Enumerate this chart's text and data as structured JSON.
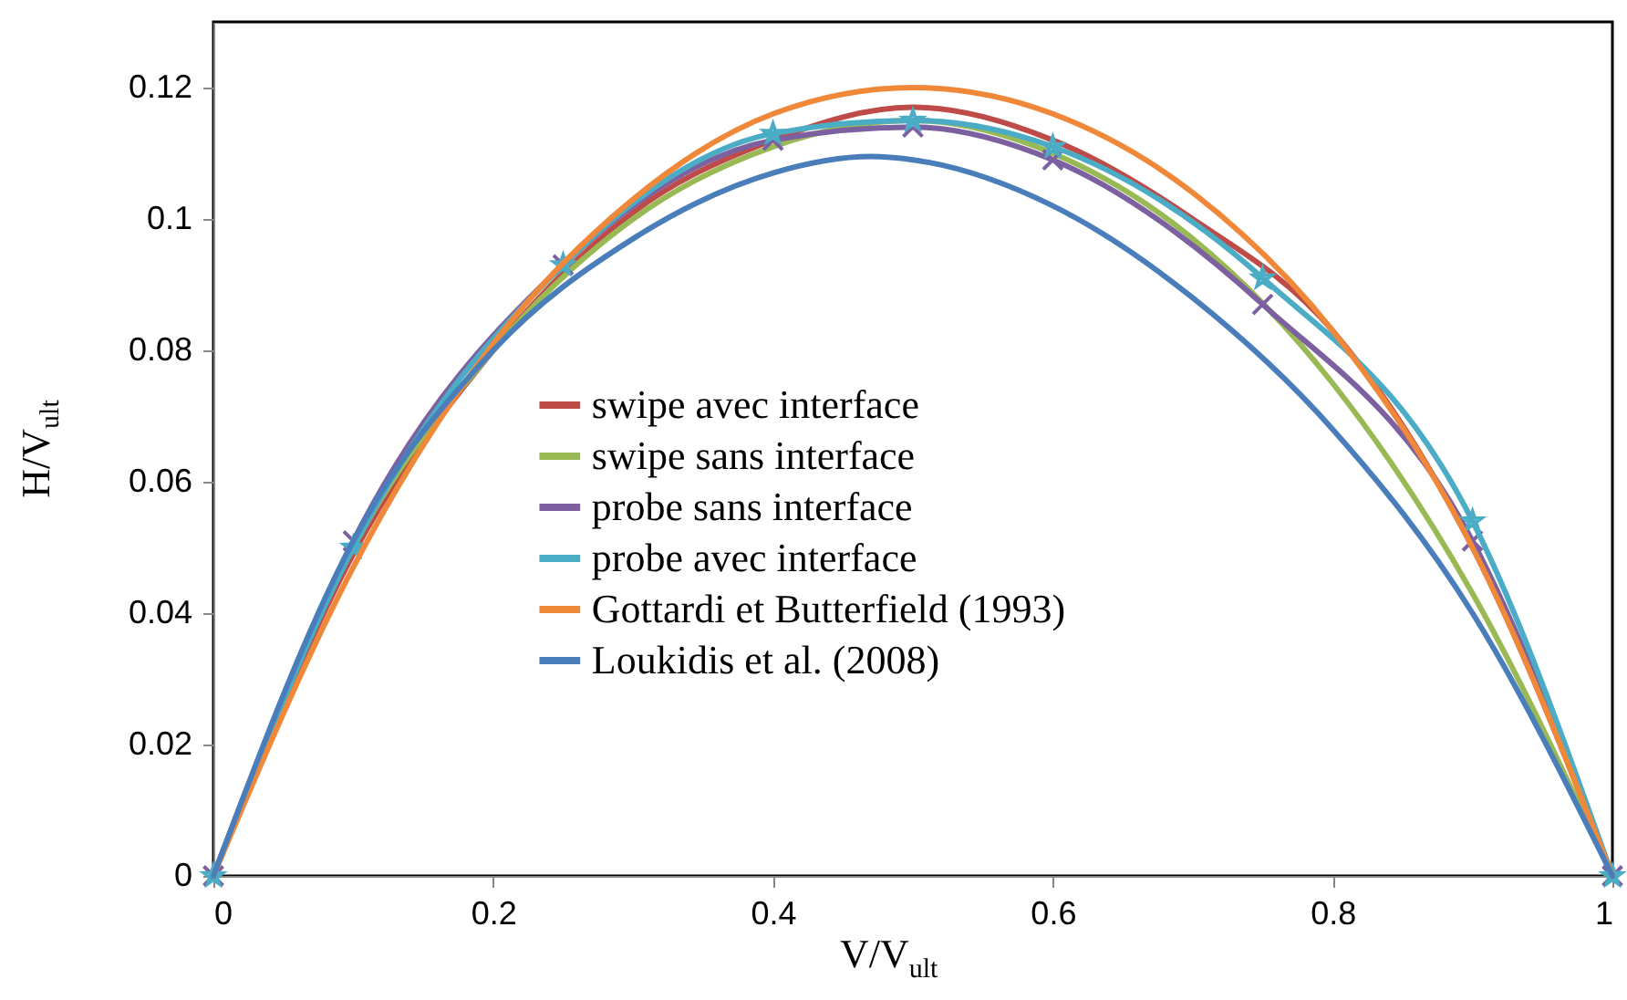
{
  "chart_data": {
    "type": "line",
    "xlabel": "V/V$_{ult}$",
    "ylabel": "H/V$_{ult}$",
    "xlim": [
      0,
      1
    ],
    "ylim": [
      0,
      0.13
    ],
    "xticks": [
      0,
      0.2,
      0.4,
      0.6,
      0.8,
      1
    ],
    "yticks": [
      0,
      0.02,
      0.04,
      0.06,
      0.08,
      0.1,
      0.12
    ],
    "grid": false,
    "legend": "bottom left",
    "series": [
      {
        "name": "swipe avec interface",
        "color": "#be4b48",
        "marker": "none",
        "x": [
          0,
          0.1,
          0.2,
          0.3,
          0.4,
          0.5,
          0.6,
          0.7,
          0.8,
          0.9,
          1
        ],
        "values": [
          0,
          0.049,
          0.08,
          0.101,
          0.112,
          0.117,
          0.112,
          0.1,
          0.083,
          0.05,
          0
        ]
      },
      {
        "name": "swipe sans interface",
        "color": "#98b954",
        "marker": "none",
        "x": [
          0,
          0.1,
          0.2,
          0.3,
          0.4,
          0.5,
          0.6,
          0.7,
          0.8,
          0.9,
          1
        ],
        "values": [
          0,
          0.05,
          0.08,
          0.1,
          0.111,
          0.115,
          0.11,
          0.097,
          0.075,
          0.043,
          0
        ]
      },
      {
        "name": "probe sans interface",
        "color": "#7d60a0",
        "marker": "cross",
        "x": [
          0,
          0.1,
          0.25,
          0.4,
          0.5,
          0.6,
          0.75,
          0.9,
          1
        ],
        "values": [
          0,
          0.051,
          0.093,
          0.112,
          0.114,
          0.109,
          0.087,
          0.051,
          0
        ]
      },
      {
        "name": "probe avec interface",
        "color": "#4bacc6",
        "marker": "star",
        "x": [
          0,
          0.1,
          0.25,
          0.4,
          0.5,
          0.6,
          0.75,
          0.9,
          1
        ],
        "values": [
          0,
          0.05,
          0.093,
          0.113,
          0.115,
          0.111,
          0.091,
          0.054,
          0
        ]
      },
      {
        "name": "Gottardi et Butterfield (1993)",
        "color": "#f0883a",
        "marker": "none",
        "x": [
          0,
          0.1,
          0.2,
          0.3,
          0.4,
          0.5,
          0.6,
          0.7,
          0.8,
          0.9,
          1
        ],
        "values": [
          0,
          0.047,
          0.081,
          0.103,
          0.116,
          0.12,
          0.116,
          0.104,
          0.083,
          0.05,
          0
        ]
      },
      {
        "name": "Loukidis et al. (2008)",
        "color": "#4a7ebb",
        "marker": "none",
        "x": [
          0,
          0.1,
          0.2,
          0.3,
          0.4,
          0.47,
          0.5,
          0.6,
          0.7,
          0.8,
          0.9,
          1
        ],
        "values": [
          0,
          0.051,
          0.08,
          0.097,
          0.107,
          0.1095,
          0.109,
          0.102,
          0.088,
          0.068,
          0.04,
          0
        ]
      }
    ]
  }
}
